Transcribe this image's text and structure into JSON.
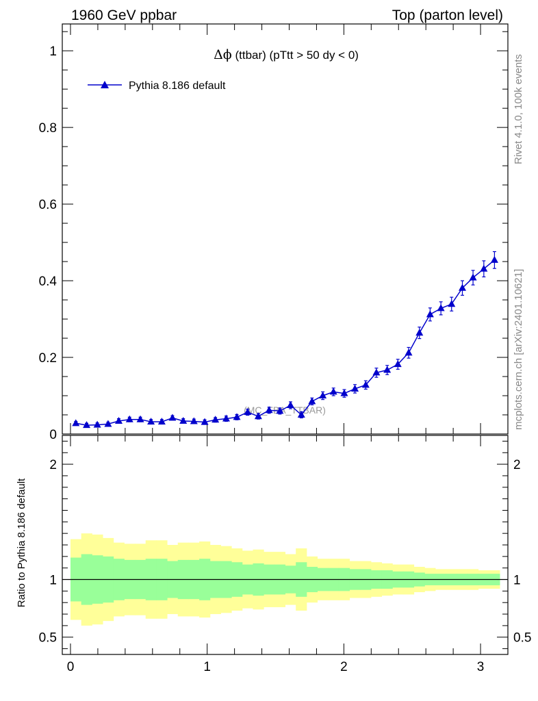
{
  "header": {
    "left_title": "1960 GeV ppbar",
    "right_title": "Top (parton level)"
  },
  "side_labels": {
    "rivet": "Rivet 4.1.0,  100k events",
    "mcplots": "mcplots.cern.ch [arXiv:2401.10621]"
  },
  "chart_data": {
    "type": "line",
    "title_symbol": "Δϕ",
    "title_rest": " (ttbar) (pTtt > 50 dy < 0)",
    "watermark": "(MC_FBA_TTBAR)",
    "legend": {
      "label": "Pythia 8.186 default",
      "placement": "top-left"
    },
    "xlim": [
      -0.06,
      3.2
    ],
    "ylim": [
      0,
      1.07
    ],
    "x_ticks": [
      "0",
      "1",
      "2",
      "3"
    ],
    "x_tick_values": [
      0,
      1,
      2,
      3
    ],
    "y_ticks": [
      "0",
      "0.2",
      "0.4",
      "0.6",
      "0.8",
      "1"
    ],
    "y_tick_values": [
      0,
      0.2,
      0.4,
      0.6,
      0.8,
      1.0
    ],
    "series": [
      {
        "name": "Pythia 8.186 default",
        "color": "#0000cc",
        "x": [
          0.039,
          0.118,
          0.196,
          0.275,
          0.353,
          0.432,
          0.511,
          0.589,
          0.668,
          0.746,
          0.825,
          0.903,
          0.982,
          1.06,
          1.139,
          1.217,
          1.296,
          1.374,
          1.453,
          1.532,
          1.61,
          1.689,
          1.767,
          1.846,
          1.924,
          2.003,
          2.081,
          2.16,
          2.238,
          2.317,
          2.395,
          2.474,
          2.553,
          2.631,
          2.71,
          2.788,
          2.867,
          2.945,
          3.024,
          3.102
        ],
        "y": [
          0.028,
          0.023,
          0.024,
          0.026,
          0.034,
          0.038,
          0.038,
          0.032,
          0.032,
          0.042,
          0.034,
          0.033,
          0.031,
          0.037,
          0.04,
          0.044,
          0.057,
          0.046,
          0.062,
          0.06,
          0.075,
          0.05,
          0.085,
          0.1,
          0.11,
          0.106,
          0.118,
          0.128,
          0.16,
          0.167,
          0.182,
          0.212,
          0.264,
          0.312,
          0.328,
          0.339,
          0.381,
          0.408,
          0.431,
          0.454
        ],
        "yerr": [
          0.005,
          0.005,
          0.005,
          0.005,
          0.006,
          0.006,
          0.006,
          0.006,
          0.006,
          0.006,
          0.006,
          0.006,
          0.006,
          0.006,
          0.007,
          0.007,
          0.008,
          0.007,
          0.008,
          0.008,
          0.009,
          0.008,
          0.009,
          0.01,
          0.01,
          0.01,
          0.011,
          0.011,
          0.012,
          0.012,
          0.013,
          0.014,
          0.015,
          0.017,
          0.017,
          0.018,
          0.019,
          0.019,
          0.021,
          0.022
        ]
      }
    ],
    "ratio": {
      "ylabel": "Ratio to Pythia 8.186 default",
      "ylim": [
        0.35,
        2.25
      ],
      "y_ticks": [
        "0.5",
        "1",
        "2"
      ],
      "y_tick_values": [
        0.5,
        1,
        2
      ],
      "inner_band_color": "#99ff99",
      "outer_band_color": "#ffff99",
      "bin_edges": [
        0.0,
        0.0785,
        0.157,
        0.2355,
        0.314,
        0.3925,
        0.471,
        0.5495,
        0.628,
        0.7065,
        0.785,
        0.8635,
        0.942,
        1.0205,
        1.099,
        1.1775,
        1.256,
        1.3345,
        1.413,
        1.4915,
        1.57,
        1.6485,
        1.727,
        1.8055,
        1.884,
        1.9625,
        2.041,
        2.1195,
        2.198,
        2.2765,
        2.355,
        2.4335,
        2.512,
        2.5905,
        2.669,
        2.7475,
        2.826,
        2.9045,
        2.983,
        3.0615,
        3.14
      ],
      "inner_half": [
        0.19,
        0.22,
        0.21,
        0.2,
        0.18,
        0.17,
        0.17,
        0.18,
        0.18,
        0.16,
        0.17,
        0.17,
        0.18,
        0.16,
        0.16,
        0.15,
        0.13,
        0.14,
        0.13,
        0.13,
        0.12,
        0.15,
        0.11,
        0.1,
        0.1,
        0.1,
        0.09,
        0.09,
        0.08,
        0.08,
        0.07,
        0.07,
        0.06,
        0.05,
        0.05,
        0.05,
        0.05,
        0.05,
        0.05,
        0.05
      ],
      "outer_half": [
        0.35,
        0.4,
        0.39,
        0.36,
        0.32,
        0.31,
        0.31,
        0.34,
        0.34,
        0.3,
        0.32,
        0.32,
        0.33,
        0.3,
        0.29,
        0.27,
        0.25,
        0.26,
        0.24,
        0.24,
        0.22,
        0.27,
        0.2,
        0.18,
        0.18,
        0.18,
        0.16,
        0.16,
        0.15,
        0.14,
        0.13,
        0.13,
        0.11,
        0.1,
        0.09,
        0.09,
        0.09,
        0.09,
        0.08,
        0.08
      ]
    },
    "ratio_x_ticks": [
      "0",
      "1",
      "2",
      "3"
    ]
  }
}
